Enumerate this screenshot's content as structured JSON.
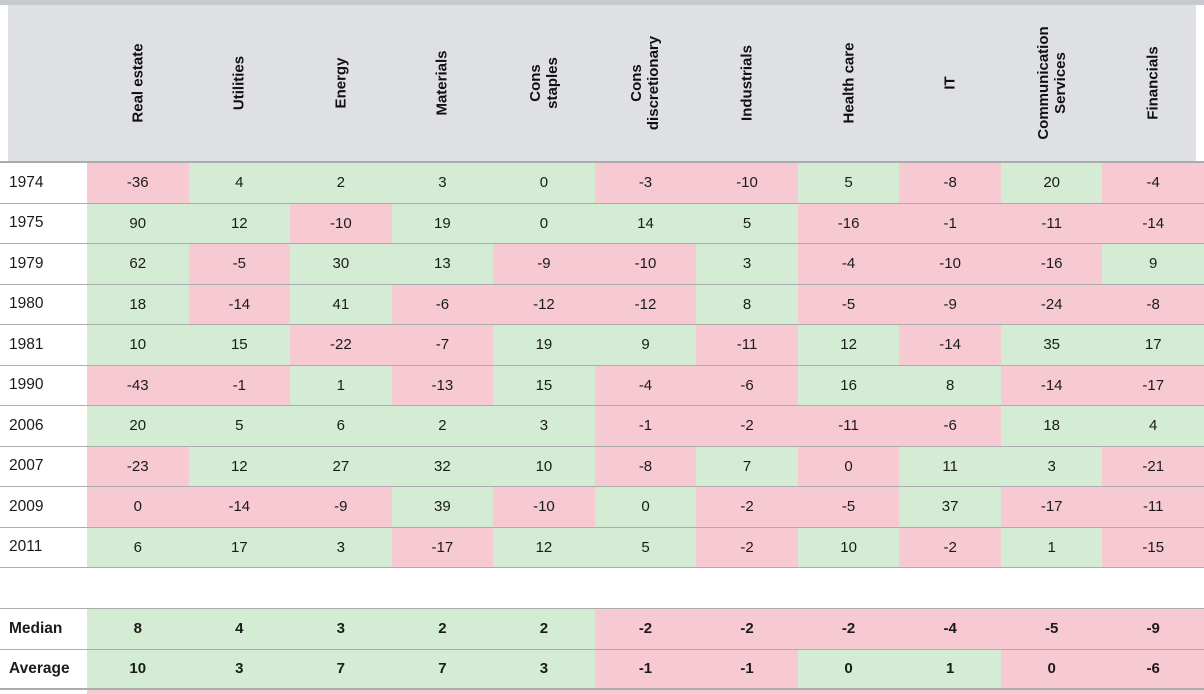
{
  "colors": {
    "positive_cell_green": "#d3ecd3",
    "negative_cell_pink": "#f7c9d2",
    "header_bg": "#dee0e4",
    "top_bar": "#c6c9cd",
    "row_border": "#a9abad",
    "text": "#1b1b1b"
  },
  "chart_data": {
    "type": "table",
    "subtype": "heatmap-table",
    "title": "",
    "legend": {
      "green": "shaded favorable cell",
      "pink": "shaded unfavorable cell"
    },
    "columns": [
      "Real estate",
      "Utilities",
      "Energy",
      "Materials",
      "Cons\nstaples",
      "Cons\ndiscretionary",
      "Industrials",
      "Health care",
      "IT",
      "Communication\nServices",
      "Financials"
    ],
    "rows": [
      {
        "label": "1974",
        "values": [
          -36,
          4,
          2,
          3,
          0,
          -3,
          -10,
          5,
          -8,
          20,
          -4
        ],
        "shades": [
          "p",
          "g",
          "g",
          "g",
          "g",
          "p",
          "p",
          "g",
          "p",
          "g",
          "p"
        ]
      },
      {
        "label": "1975",
        "values": [
          90,
          12,
          -10,
          19,
          0,
          14,
          5,
          -16,
          -1,
          -11,
          -14
        ],
        "shades": [
          "g",
          "g",
          "p",
          "g",
          "g",
          "g",
          "g",
          "p",
          "p",
          "p",
          "p"
        ]
      },
      {
        "label": "1979",
        "values": [
          62,
          -5,
          30,
          13,
          -9,
          -10,
          3,
          -4,
          -10,
          -16,
          9
        ],
        "shades": [
          "g",
          "p",
          "g",
          "g",
          "p",
          "p",
          "g",
          "p",
          "p",
          "p",
          "g"
        ]
      },
      {
        "label": "1980",
        "values": [
          18,
          -14,
          41,
          -6,
          -12,
          -12,
          8,
          -5,
          -9,
          -24,
          -8
        ],
        "shades": [
          "g",
          "p",
          "g",
          "p",
          "p",
          "p",
          "g",
          "p",
          "p",
          "p",
          "p"
        ]
      },
      {
        "label": "1981",
        "values": [
          10,
          15,
          -22,
          -7,
          19,
          9,
          -11,
          12,
          -14,
          35,
          17
        ],
        "shades": [
          "g",
          "g",
          "p",
          "p",
          "g",
          "g",
          "p",
          "g",
          "p",
          "g",
          "g"
        ]
      },
      {
        "label": "1990",
        "values": [
          -43,
          -1,
          1,
          -13,
          15,
          -4,
          -6,
          16,
          8,
          -14,
          -17
        ],
        "shades": [
          "p",
          "p",
          "g",
          "p",
          "g",
          "p",
          "p",
          "g",
          "g",
          "p",
          "p"
        ]
      },
      {
        "label": "2006",
        "values": [
          20,
          5,
          6,
          2,
          3,
          -1,
          -2,
          -11,
          -6,
          18,
          4
        ],
        "shades": [
          "g",
          "g",
          "g",
          "g",
          "g",
          "p",
          "p",
          "p",
          "p",
          "g",
          "g"
        ]
      },
      {
        "label": "2007",
        "values": [
          -23,
          12,
          27,
          32,
          10,
          -8,
          7,
          0,
          11,
          3,
          -21
        ],
        "shades": [
          "p",
          "g",
          "g",
          "g",
          "g",
          "p",
          "g",
          "p",
          "g",
          "g",
          "p"
        ]
      },
      {
        "label": "2009",
        "values": [
          0,
          -14,
          -9,
          39,
          -10,
          0,
          -2,
          -5,
          37,
          -17,
          -11
        ],
        "shades": [
          "p",
          "p",
          "p",
          "g",
          "p",
          "g",
          "p",
          "p",
          "g",
          "p",
          "p"
        ]
      },
      {
        "label": "2011",
        "values": [
          6,
          17,
          3,
          -17,
          12,
          5,
          -2,
          10,
          -2,
          1,
          -15
        ],
        "shades": [
          "g",
          "g",
          "g",
          "p",
          "g",
          "g",
          "p",
          "g",
          "p",
          "g",
          "p"
        ]
      }
    ],
    "summary_rows": [
      {
        "label": "Median",
        "values": [
          8,
          4,
          3,
          2,
          2,
          -2,
          -2,
          -2,
          -4,
          -5,
          -9
        ],
        "shades": [
          "g",
          "g",
          "g",
          "g",
          "g",
          "p",
          "p",
          "p",
          "p",
          "p",
          "p"
        ]
      },
      {
        "label": "Average",
        "values": [
          10,
          3,
          7,
          7,
          3,
          -1,
          -1,
          0,
          1,
          0,
          -6
        ],
        "shades": [
          "g",
          "g",
          "g",
          "g",
          "g",
          "p",
          "p",
          "g",
          "g",
          "p",
          "p"
        ]
      }
    ]
  }
}
